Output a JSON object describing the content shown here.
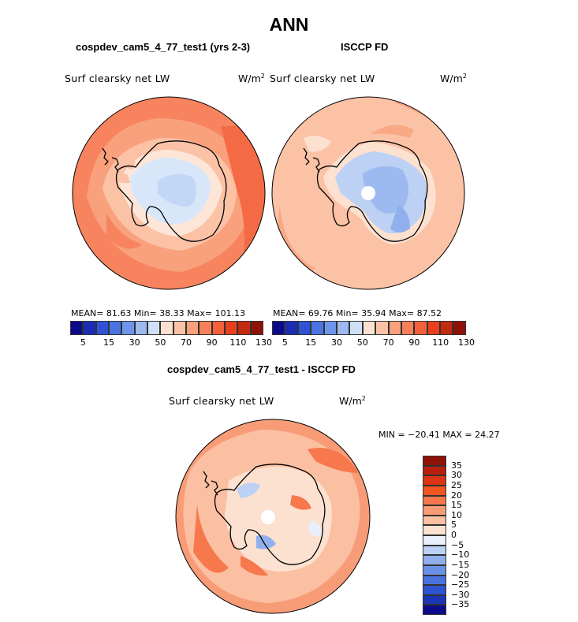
{
  "title": "ANN",
  "panels": [
    {
      "id": "model",
      "subtitle": "cospdev_cam5_4_77_test1 (yrs 2-3)",
      "field": "Surf clearsky net LW",
      "units": "W/m",
      "units_exp": "2",
      "stats": "MEAN=  81.63   Min=   38.33   Max= 101.13"
    },
    {
      "id": "obs",
      "subtitle": "ISCCP FD",
      "field": "Surf clearsky net LW",
      "units": "W/m",
      "units_exp": "2",
      "stats": "MEAN=  69.76   Min=   35.94   Max=  87.52"
    },
    {
      "id": "diff",
      "subtitle": "cospdev_cam5_4_77_test1 - ISCCP FD",
      "field": "Surf clearsky net LW",
      "units": "W/m",
      "units_exp": "2",
      "stats": "MIN = −20.41  MAX =   24.27"
    }
  ],
  "colorbar_top": {
    "colors": [
      "#0b0b8a",
      "#1b2db4",
      "#2f52d6",
      "#4a74e2",
      "#6e95ea",
      "#9cb9f0",
      "#cfe0f8",
      "#fde1d0",
      "#fbc2a6",
      "#f9a07c",
      "#f7805a",
      "#f4603a",
      "#e8401d",
      "#c22a12",
      "#8e1208"
    ],
    "labels": [
      "5",
      "15",
      "30",
      "50",
      "70",
      "90",
      "110",
      "130"
    ]
  },
  "colorbar_diff": {
    "colors": [
      "#8e1208",
      "#b81e0e",
      "#dc3414",
      "#f25422",
      "#f6784c",
      "#f89c78",
      "#fbbfa2",
      "#fde1d0",
      "#e7f0fb",
      "#bcd1f3",
      "#8fb0ec",
      "#6a91e5",
      "#4a72dc",
      "#2e53cf",
      "#1b35b4",
      "#0b0b8a"
    ],
    "labels": [
      "35",
      "30",
      "25",
      "20",
      "15",
      "10",
      "5",
      "0",
      "−5",
      "−10",
      "−15",
      "−20",
      "−25",
      "−30",
      "−35"
    ]
  }
}
